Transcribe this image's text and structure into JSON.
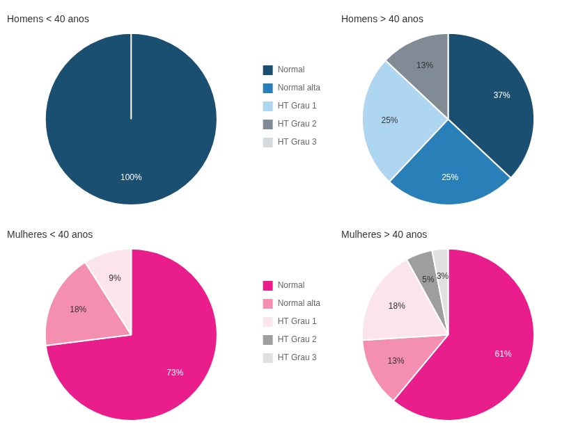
{
  "chart_data": [
    {
      "type": "pie",
      "title": "Homens < 40 anos",
      "categories": [
        "Normal",
        "Normal alta",
        "HT Grau 1",
        "HT Grau 2",
        "HT Grau 3"
      ],
      "values": [
        100,
        null,
        null,
        null,
        null
      ],
      "value_labels": [
        "100%",
        null,
        null,
        null,
        null
      ],
      "colors": [
        "#1b4f72",
        "#2980b9",
        "#aed6f1",
        "#808b96",
        "#d5d8dc"
      ],
      "data_labels": true,
      "legend": "right"
    },
    {
      "type": "pie",
      "title": "Homens > 40 anos",
      "categories": [
        "Normal",
        "Normal alta",
        "HT Grau 1",
        "HT Grau 2",
        "HT Grau 3"
      ],
      "values": [
        37,
        25,
        25,
        13,
        null
      ],
      "value_labels": [
        "37%",
        "25%",
        "25%",
        "13%",
        null
      ],
      "colors": [
        "#1b4f72",
        "#2980b9",
        "#aed6f1",
        "#808b96",
        "#d5d8dc"
      ],
      "data_labels": true
    },
    {
      "type": "pie",
      "title": "Mulheres < 40 anos",
      "categories": [
        "Normal",
        "Normal alta",
        "HT Grau 1",
        "HT Grau 2",
        "HT Grau 3"
      ],
      "values": [
        73,
        18,
        9,
        null,
        null
      ],
      "value_labels": [
        "73%",
        "18%",
        "9%",
        null,
        null
      ],
      "colors": [
        "#e91e8c",
        "#f48fb1",
        "#fce4ec",
        "#9e9e9e",
        "#e0e0e0"
      ],
      "data_labels": true,
      "legend": "right"
    },
    {
      "type": "pie",
      "title": "Mulheres > 40 anos",
      "categories": [
        "Normal",
        "Normal alta",
        "HT Grau 1",
        "HT Grau 2",
        "HT Grau 3"
      ],
      "values": [
        61,
        13,
        18,
        5,
        3
      ],
      "value_labels": [
        "61%",
        "13%",
        "18%",
        "5%",
        "3%"
      ],
      "colors": [
        "#e91e8c",
        "#f48fb1",
        "#fce4ec",
        "#9e9e9e",
        "#e0e0e0"
      ],
      "data_labels": true
    }
  ]
}
